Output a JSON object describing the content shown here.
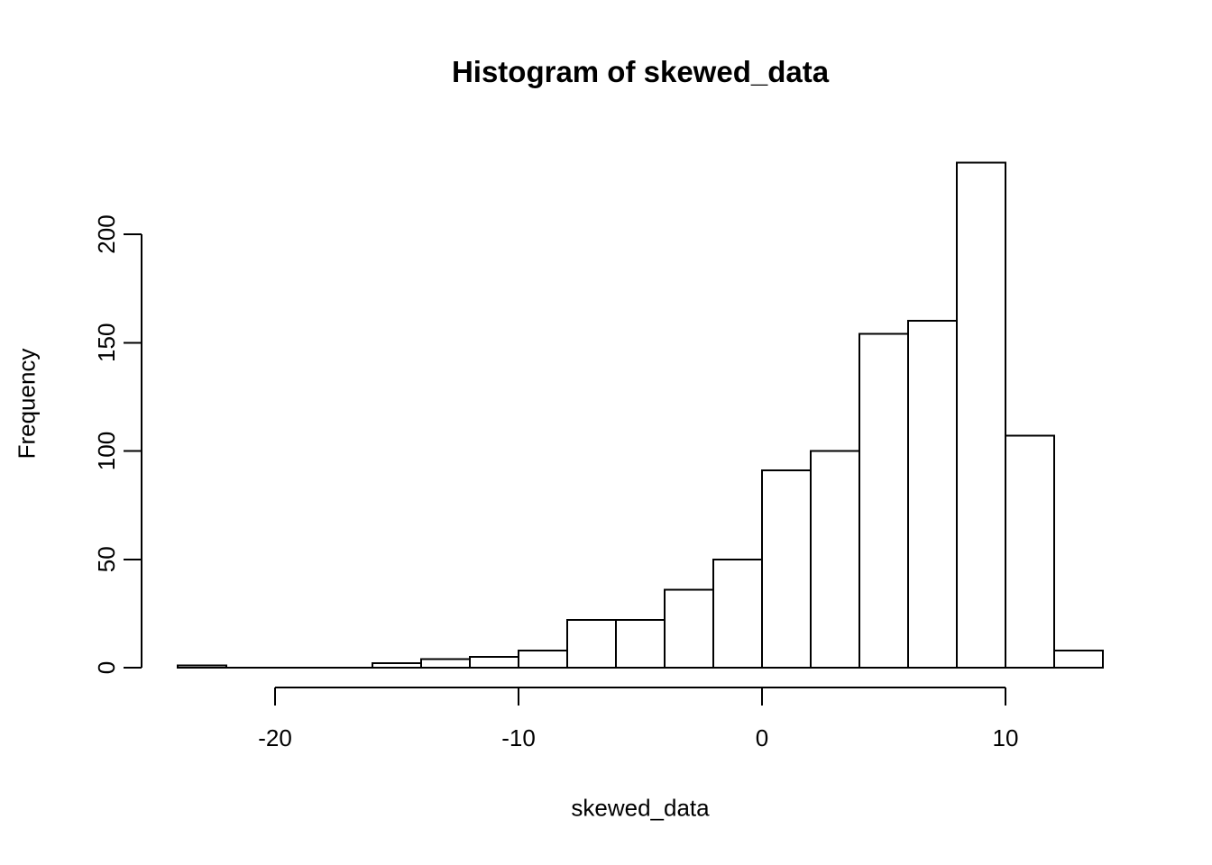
{
  "page": {
    "background": "#ffffff"
  },
  "chart_data": {
    "type": "bar",
    "subtype": "histogram",
    "title": "Histogram of skewed_data",
    "xlabel": "skewed_data",
    "ylabel": "Frequency",
    "bin_start": -24,
    "bin_width": 2,
    "bins": [
      {
        "range": [
          -24,
          -22
        ],
        "count": 1
      },
      {
        "range": [
          -22,
          -20
        ],
        "count": 0
      },
      {
        "range": [
          -20,
          -18
        ],
        "count": 0
      },
      {
        "range": [
          -18,
          -16
        ],
        "count": 0
      },
      {
        "range": [
          -16,
          -14
        ],
        "count": 2
      },
      {
        "range": [
          -14,
          -12
        ],
        "count": 4
      },
      {
        "range": [
          -12,
          -10
        ],
        "count": 5
      },
      {
        "range": [
          -10,
          -8
        ],
        "count": 8
      },
      {
        "range": [
          -8,
          -6
        ],
        "count": 22
      },
      {
        "range": [
          -6,
          -4
        ],
        "count": 22
      },
      {
        "range": [
          -4,
          -2
        ],
        "count": 36
      },
      {
        "range": [
          -2,
          0
        ],
        "count": 50
      },
      {
        "range": [
          0,
          2
        ],
        "count": 91
      },
      {
        "range": [
          2,
          4
        ],
        "count": 100
      },
      {
        "range": [
          4,
          6
        ],
        "count": 154
      },
      {
        "range": [
          6,
          8
        ],
        "count": 160
      },
      {
        "range": [
          8,
          10
        ],
        "count": 233
      },
      {
        "range": [
          10,
          12
        ],
        "count": 107
      },
      {
        "range": [
          12,
          14
        ],
        "count": 8
      }
    ],
    "x_ticks": [
      -20,
      -10,
      0,
      10
    ],
    "y_ticks": [
      0,
      50,
      100,
      150,
      200
    ],
    "xlim": [
      -24,
      14
    ],
    "ylim": [
      0,
      200
    ],
    "grid": false,
    "legend_position": "none",
    "bar_fill": "#ffffff",
    "bar_stroke": "#000000",
    "axis_color": "#000000",
    "text_color": "#000000"
  }
}
